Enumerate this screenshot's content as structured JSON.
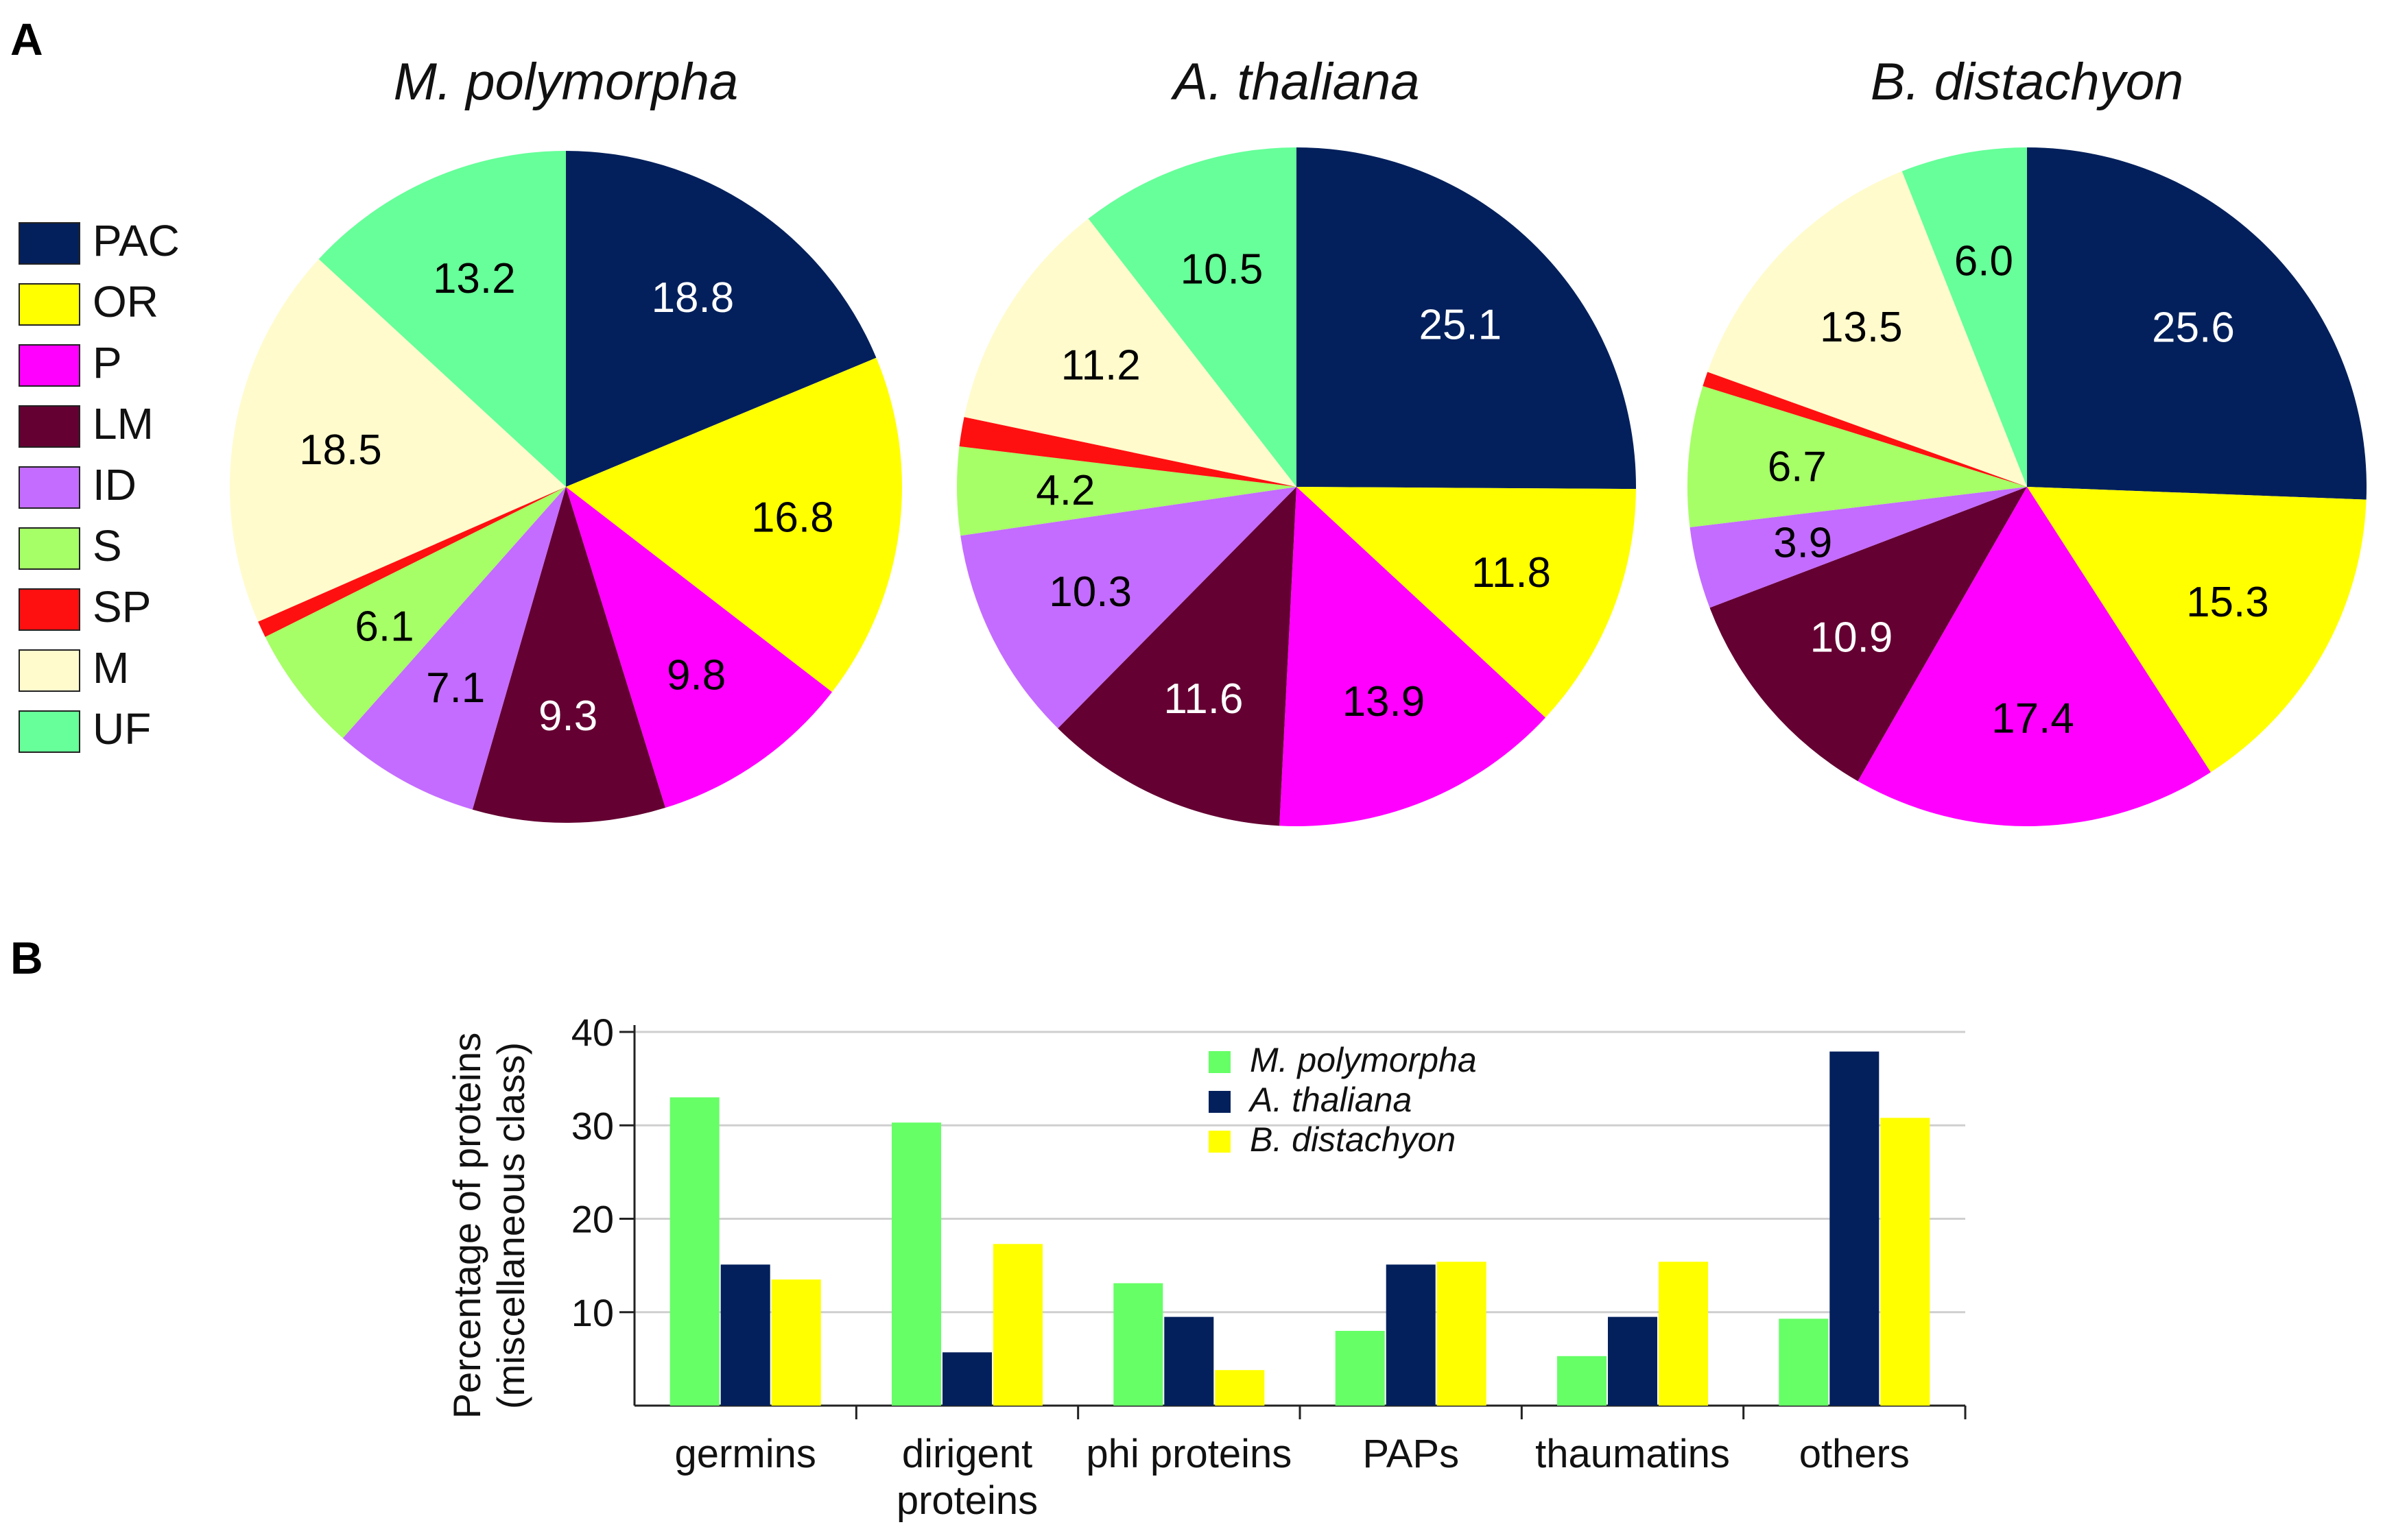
{
  "panel_labels": {
    "a": "A",
    "b": "B"
  },
  "legend": [
    {
      "key": "PAC",
      "color": "#03205c"
    },
    {
      "key": "OR",
      "color": "#ffff00"
    },
    {
      "key": "P",
      "color": "#ff00ff"
    },
    {
      "key": "LM",
      "color": "#640032"
    },
    {
      "key": "ID",
      "color": "#c46cff"
    },
    {
      "key": "S",
      "color": "#a6ff66"
    },
    {
      "key": "SP",
      "color": "#ff1010"
    },
    {
      "key": "M",
      "color": "#fffbcc"
    },
    {
      "key": "UF",
      "color": "#66ff99"
    }
  ],
  "chart_data": [
    {
      "type": "pie",
      "title": "M. polymorpha",
      "categories": [
        "PAC",
        "OR",
        "P",
        "LM",
        "ID",
        "S",
        "SP",
        "M",
        "UF"
      ],
      "values": [
        18.8,
        16.8,
        9.8,
        9.3,
        7.1,
        6.1,
        0.8,
        18.5,
        13.2
      ],
      "labels": [
        "18.8",
        "16.8",
        "9.8",
        "9.3",
        "7.1",
        "6.1",
        "",
        "18.5",
        "13.2"
      ],
      "label_colors": [
        "#ffffff",
        "#000000",
        "#000000",
        "#ffffff",
        "#000000",
        "#000000",
        "#000000",
        "#000000",
        "#000000"
      ]
    },
    {
      "type": "pie",
      "title": "A. thaliana",
      "categories": [
        "PAC",
        "OR",
        "P",
        "LM",
        "ID",
        "S",
        "SP",
        "M",
        "UF"
      ],
      "values": [
        25.1,
        11.8,
        13.9,
        11.6,
        10.3,
        4.2,
        1.4,
        11.2,
        10.5
      ],
      "labels": [
        "25.1",
        "11.8",
        "13.9",
        "11.6",
        "10.3",
        "4.2",
        "",
        "11.2",
        "10.5"
      ],
      "label_colors": [
        "#ffffff",
        "#000000",
        "#000000",
        "#ffffff",
        "#000000",
        "#000000",
        "#000000",
        "#000000",
        "#000000"
      ]
    },
    {
      "type": "pie",
      "title": "B. distachyon",
      "categories": [
        "PAC",
        "OR",
        "P",
        "LM",
        "ID",
        "S",
        "SP",
        "M",
        "UF"
      ],
      "values": [
        25.6,
        15.3,
        17.4,
        10.9,
        3.9,
        6.7,
        0.7,
        13.5,
        6.0
      ],
      "labels": [
        "25.6",
        "15.3",
        "17.4",
        "10.9",
        "3.9",
        "6.7",
        "",
        "13.5",
        "6.0"
      ],
      "label_colors": [
        "#ffffff",
        "#000000",
        "#000000",
        "#ffffff",
        "#000000",
        "#000000",
        "#000000",
        "#000000",
        "#000000"
      ]
    },
    {
      "type": "bar",
      "title": "",
      "categories": [
        "germins",
        "dirigent\nproteins",
        "phi proteins",
        "PAPs",
        "thaumatins",
        "others"
      ],
      "series": [
        {
          "name": "M. polymorpha",
          "color": "#66ff66",
          "values": [
            33.0,
            30.3,
            13.1,
            8.0,
            5.3,
            9.3
          ]
        },
        {
          "name": "A. thaliana",
          "color": "#03205c",
          "values": [
            15.1,
            5.7,
            9.5,
            15.1,
            9.5,
            37.9
          ]
        },
        {
          "name": "B. distachyon",
          "color": "#ffff00",
          "values": [
            13.5,
            17.3,
            3.8,
            15.4,
            15.4,
            30.8
          ]
        }
      ],
      "ylabel": "Percentage of proteins\n(miscellaneous class)",
      "xlabel": "",
      "ylim": [
        0,
        40
      ],
      "yticks": [
        "10",
        "20",
        "30",
        "40"
      ],
      "grid": true,
      "legend_position": "top-center"
    }
  ]
}
